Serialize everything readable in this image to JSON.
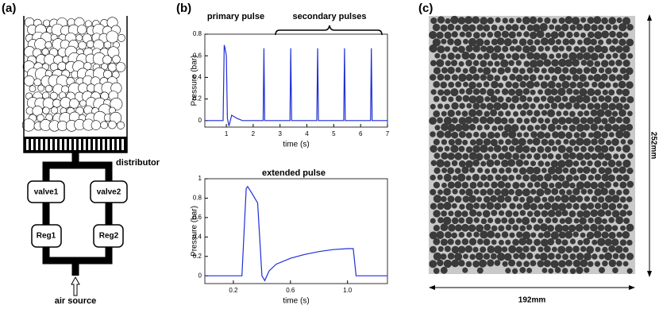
{
  "panel_labels": [
    "(a)",
    "(b)",
    "(c)"
  ],
  "diagram": {
    "distributor": "distributor",
    "valves": [
      "valve1",
      "valve2"
    ],
    "regulators": [
      "Reg1",
      "Reg2"
    ],
    "source": "air source"
  },
  "photo": {
    "height": "252mm",
    "width": "192mm"
  },
  "chart_data": [
    {
      "type": "line",
      "title": "primary pulse",
      "annotation": "secondary pulses",
      "x_label": "time (s)",
      "y_label": "Pressure (bar)",
      "color": "#1f2fd6",
      "xlim": [
        0.2,
        7
      ],
      "ylim": [
        -0.06,
        0.8
      ],
      "xticks": [
        1,
        2,
        3,
        4,
        5,
        6,
        7
      ],
      "yticks": [
        0,
        0.2,
        0.4,
        0.6,
        0.8
      ],
      "x": [
        0.2,
        0.88,
        0.92,
        0.96,
        1.0,
        1.04,
        1.1,
        1.2,
        1.4,
        1.6,
        2.37,
        2.4,
        2.43,
        3.37,
        3.4,
        3.43,
        4.37,
        4.4,
        4.43,
        5.37,
        5.4,
        5.43,
        6.37,
        6.4,
        6.43,
        7
      ],
      "values": [
        0,
        0,
        0.7,
        0.66,
        0.6,
        0.02,
        -0.05,
        0.05,
        0.02,
        0,
        0,
        0.67,
        0,
        0,
        0.67,
        0,
        0,
        0.67,
        0,
        0,
        0.67,
        0,
        0,
        0.67,
        0,
        0
      ]
    },
    {
      "type": "line",
      "title": "extended pulse",
      "x_label": "time (s)",
      "y_label": "Pressure (bar)",
      "color": "#1f2fd6",
      "xlim": [
        0,
        1.28
      ],
      "ylim": [
        -0.08,
        1.0
      ],
      "xticks": [
        0.2,
        0.6,
        {
          "value": 1,
          "label": "1.0"
        }
      ],
      "yticks": [
        0,
        0.2,
        0.4,
        0.6,
        0.8,
        1
      ],
      "x": [
        0,
        0.26,
        0.29,
        0.3,
        0.33,
        0.35,
        0.37,
        0.4,
        0.42,
        0.45,
        0.5,
        0.6,
        0.7,
        0.8,
        0.9,
        1.0,
        1.04,
        1.06,
        1.28
      ],
      "values": [
        0,
        0,
        0.9,
        0.92,
        0.85,
        0.8,
        0.75,
        0,
        -0.05,
        0.05,
        0.12,
        0.18,
        0.22,
        0.25,
        0.27,
        0.28,
        0.28,
        0,
        0
      ]
    }
  ]
}
